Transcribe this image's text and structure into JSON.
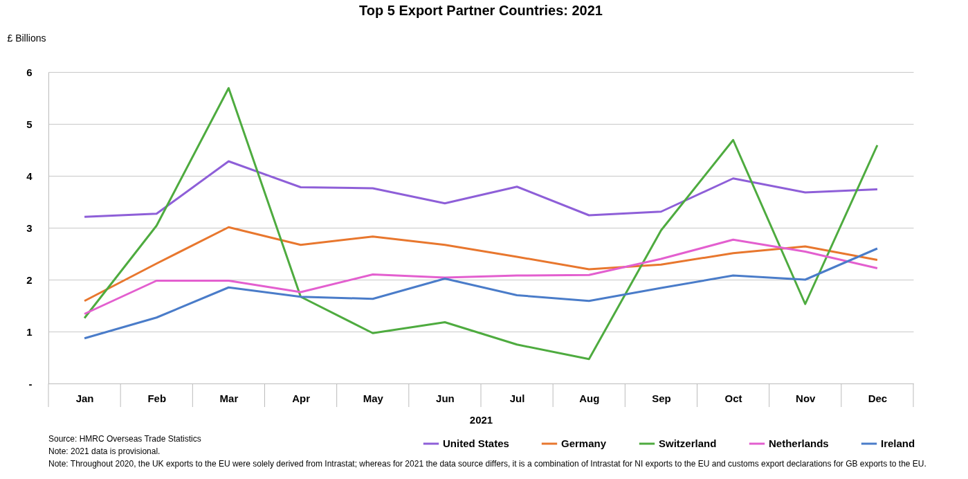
{
  "chart_data": {
    "type": "line",
    "title": "Top 5 Export Partner Countries: 2021",
    "ylabel": "£ Billions",
    "xlabel": "2021",
    "categories": [
      "Jan",
      "Feb",
      "Mar",
      "Apr",
      "May",
      "Jun",
      "Jul",
      "Aug",
      "Sep",
      "Oct",
      "Nov",
      "Dec"
    ],
    "series": [
      {
        "name": "United States",
        "color": "#8e5fd8",
        "values": [
          3.21,
          3.27,
          4.28,
          3.78,
          3.76,
          3.47,
          3.79,
          3.24,
          3.31,
          3.95,
          3.68,
          3.74
        ]
      },
      {
        "name": "Germany",
        "color": "#e8772e",
        "values": [
          1.59,
          2.31,
          3.01,
          2.67,
          2.83,
          2.67,
          2.44,
          2.2,
          2.29,
          2.51,
          2.64,
          2.38
        ]
      },
      {
        "name": "Switzerland",
        "color": "#4eab3f",
        "values": [
          1.26,
          3.04,
          5.69,
          1.67,
          0.97,
          1.18,
          0.75,
          0.47,
          2.95,
          4.69,
          1.53,
          4.59
        ]
      },
      {
        "name": "Netherlands",
        "color": "#e35fcf",
        "values": [
          1.34,
          1.98,
          1.98,
          1.76,
          2.1,
          2.04,
          2.08,
          2.09,
          2.4,
          2.77,
          2.54,
          2.22
        ]
      },
      {
        "name": "Ireland",
        "color": "#4a7cc9",
        "values": [
          0.87,
          1.27,
          1.85,
          1.67,
          1.63,
          2.02,
          1.7,
          1.59,
          1.84,
          2.08,
          2.0,
          2.6
        ]
      }
    ],
    "ylim": [
      0,
      6
    ],
    "yticks": [
      {
        "value": 0,
        "label": "-"
      },
      1,
      2,
      3,
      4,
      5,
      6
    ],
    "grid": "y",
    "legend": "bottom",
    "line_style": "solid",
    "annotations": [
      "Source: HMRC Overseas Trade Statistics",
      "Note: 2021 data is provisional.",
      "Note: Throughout 2020, the UK exports to the EU were solely derived from Intrastat; whereas for 2021 the data source differs, it is a combination of Intrastat for NI exports to the EU and customs export declarations for GB exports to the EU."
    ]
  }
}
